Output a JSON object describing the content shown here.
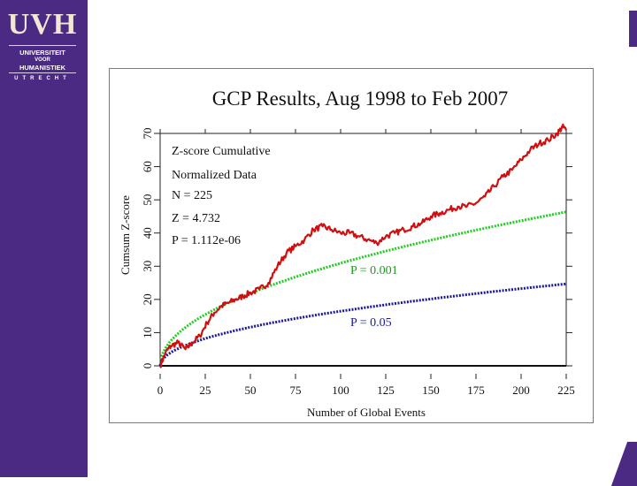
{
  "branding": {
    "logo_mark": "UVH",
    "logo_line1": "UNIVERSITEIT",
    "logo_line2": "VOOR",
    "logo_line3": "HUMANISTIEK",
    "logo_line4": "UTRECHT",
    "brand_color": "#4b2a83"
  },
  "chart_data": {
    "type": "line",
    "title": "GCP Results, Aug 1998 to Feb 2007",
    "xlabel": "Number of Global Events",
    "ylabel": "Cumsum Z-score",
    "xlim": [
      0,
      225
    ],
    "ylim": [
      0,
      70
    ],
    "xticks": [
      "0",
      "25",
      "50",
      "75",
      "100",
      "125",
      "150",
      "175",
      "200",
      "225"
    ],
    "yticks": [
      "0",
      "10",
      "20",
      "30",
      "40",
      "50",
      "60",
      "70"
    ],
    "annotation_lines": [
      "Z-score Cumulative",
      "Normalized Data",
      "N = 225",
      "Z = 4.732",
      "P = 1.112e-06"
    ],
    "curve_labels": {
      "p001": "P = 0.001",
      "p05": "P = 0.05"
    },
    "series": [
      {
        "name": "Z-score Cumulative",
        "color": "#d01010",
        "points": [
          [
            0,
            0
          ],
          [
            3,
            4
          ],
          [
            6,
            6
          ],
          [
            10,
            7
          ],
          [
            14,
            5
          ],
          [
            18,
            7
          ],
          [
            22,
            9
          ],
          [
            26,
            13
          ],
          [
            30,
            16
          ],
          [
            34,
            18
          ],
          [
            38,
            19
          ],
          [
            42,
            20
          ],
          [
            46,
            21
          ],
          [
            50,
            22
          ],
          [
            55,
            23
          ],
          [
            60,
            25
          ],
          [
            65,
            30
          ],
          [
            70,
            34
          ],
          [
            75,
            36
          ],
          [
            80,
            38
          ],
          [
            85,
            41
          ],
          [
            90,
            42
          ],
          [
            95,
            41
          ],
          [
            100,
            40
          ],
          [
            105,
            40
          ],
          [
            110,
            39
          ],
          [
            115,
            38
          ],
          [
            120,
            37
          ],
          [
            125,
            39
          ],
          [
            130,
            40
          ],
          [
            135,
            41
          ],
          [
            140,
            42
          ],
          [
            145,
            43
          ],
          [
            150,
            45
          ],
          [
            155,
            46
          ],
          [
            160,
            47
          ],
          [
            165,
            48
          ],
          [
            170,
            48
          ],
          [
            175,
            49
          ],
          [
            180,
            51
          ],
          [
            185,
            54
          ],
          [
            190,
            57
          ],
          [
            195,
            59
          ],
          [
            200,
            62
          ],
          [
            205,
            65
          ],
          [
            210,
            67
          ],
          [
            215,
            68
          ],
          [
            220,
            70
          ],
          [
            223,
            72
          ],
          [
            225,
            71
          ]
        ]
      },
      {
        "name": "P = 0.001",
        "color": "#22cc22",
        "scale": 3.09
      },
      {
        "name": "P = 0.05",
        "color": "#1a1a9a",
        "scale": 1.645
      }
    ]
  }
}
